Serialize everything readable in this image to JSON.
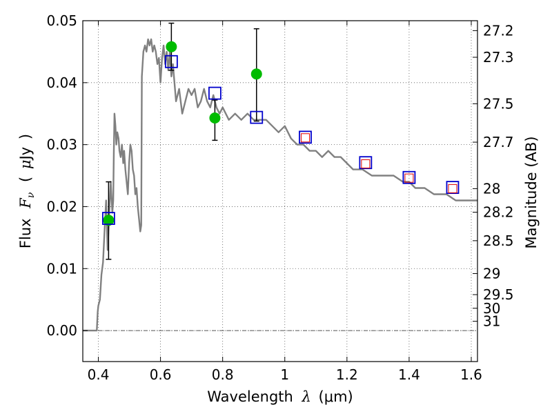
{
  "chart_data": {
    "type": "scatter",
    "xlabel": {
      "pre": "Wavelength",
      "sym": "λ",
      "paren_open": "(",
      "unit": "μm",
      "paren_close": ")"
    },
    "ylabel": {
      "pre": "Flux",
      "sym": "F",
      "sub": "ν",
      "paren_open": "(",
      "unit_sym": "μ",
      "unit_rest": "Jy",
      "paren_close": ")"
    },
    "y2label": "Magnitude (AB)",
    "xlim": [
      0.35,
      1.62
    ],
    "ylim": [
      -0.005,
      0.05
    ],
    "grid": true,
    "x_ticks": [
      {
        "value": 0.4,
        "label": "0.4"
      },
      {
        "value": 0.6,
        "label": "0.6"
      },
      {
        "value": 0.8,
        "label": "0.8"
      },
      {
        "value": 1.0,
        "label": "1"
      },
      {
        "value": 1.2,
        "label": "1.2"
      },
      {
        "value": 1.4,
        "label": "1.4"
      },
      {
        "value": 1.6,
        "label": "1.6"
      }
    ],
    "y_ticks": [
      {
        "value": 0.0,
        "label": "0.00"
      },
      {
        "value": 0.01,
        "label": "0.01"
      },
      {
        "value": 0.02,
        "label": "0.02"
      },
      {
        "value": 0.03,
        "label": "0.03"
      },
      {
        "value": 0.04,
        "label": "0.04"
      },
      {
        "value": 0.05,
        "label": "0.05"
      }
    ],
    "y2_ticks": [
      {
        "flux": 0.0484,
        "label": "27.2"
      },
      {
        "flux": 0.0441,
        "label": "27.3"
      },
      {
        "flux": 0.0366,
        "label": "27.5"
      },
      {
        "flux": 0.0304,
        "label": "27.7"
      },
      {
        "flux": 0.0229,
        "label": "28"
      },
      {
        "flux": 0.0191,
        "label": "28.2"
      },
      {
        "flux": 0.0145,
        "label": "28.5"
      },
      {
        "flux": 0.0092,
        "label": "29"
      },
      {
        "flux": 0.0058,
        "label": "29.5"
      },
      {
        "flux": 0.0036,
        "label": "30"
      },
      {
        "flux": 0.0015,
        "label": "31"
      }
    ],
    "colors": {
      "model_line": "#808080",
      "observed": "#00bb00",
      "model_box": "#0000cc",
      "ir_box": "#dd0000",
      "errorbar": "#000000",
      "zero_line": "#555555",
      "grid": "#555555"
    },
    "model_spectrum": {
      "x": [
        0.35,
        0.395,
        0.398,
        0.4,
        0.405,
        0.41,
        0.415,
        0.42,
        0.425,
        0.43,
        0.435,
        0.44,
        0.442,
        0.445,
        0.448,
        0.45,
        0.452,
        0.455,
        0.458,
        0.461,
        0.465,
        0.468,
        0.472,
        0.476,
        0.48,
        0.483,
        0.487,
        0.491,
        0.495,
        0.499,
        0.503,
        0.507,
        0.511,
        0.515,
        0.519,
        0.523,
        0.527,
        0.531,
        0.535,
        0.538,
        0.54,
        0.545,
        0.55,
        0.555,
        0.56,
        0.565,
        0.57,
        0.575,
        0.58,
        0.585,
        0.59,
        0.595,
        0.6,
        0.605,
        0.61,
        0.615,
        0.62,
        0.625,
        0.63,
        0.635,
        0.64,
        0.65,
        0.66,
        0.67,
        0.68,
        0.69,
        0.7,
        0.71,
        0.72,
        0.73,
        0.74,
        0.75,
        0.76,
        0.77,
        0.78,
        0.79,
        0.8,
        0.82,
        0.84,
        0.86,
        0.88,
        0.9,
        0.92,
        0.94,
        0.96,
        0.98,
        1.0,
        1.02,
        1.04,
        1.06,
        1.08,
        1.1,
        1.12,
        1.14,
        1.16,
        1.18,
        1.2,
        1.22,
        1.25,
        1.28,
        1.3,
        1.32,
        1.35,
        1.38,
        1.4,
        1.42,
        1.45,
        1.48,
        1.5,
        1.52,
        1.55,
        1.58,
        1.62
      ],
      "y": [
        0.0,
        0.0,
        0.003,
        0.004,
        0.005,
        0.009,
        0.011,
        0.016,
        0.021,
        0.013,
        0.019,
        0.024,
        0.022,
        0.019,
        0.021,
        0.029,
        0.035,
        0.033,
        0.03,
        0.032,
        0.031,
        0.029,
        0.028,
        0.03,
        0.027,
        0.029,
        0.026,
        0.024,
        0.022,
        0.027,
        0.03,
        0.029,
        0.026,
        0.025,
        0.022,
        0.023,
        0.02,
        0.018,
        0.016,
        0.017,
        0.041,
        0.045,
        0.046,
        0.045,
        0.047,
        0.046,
        0.047,
        0.045,
        0.046,
        0.045,
        0.043,
        0.044,
        0.04,
        0.044,
        0.046,
        0.043,
        0.045,
        0.042,
        0.045,
        0.041,
        0.043,
        0.037,
        0.039,
        0.035,
        0.037,
        0.039,
        0.038,
        0.039,
        0.036,
        0.037,
        0.039,
        0.037,
        0.036,
        0.038,
        0.036,
        0.035,
        0.036,
        0.034,
        0.035,
        0.034,
        0.035,
        0.034,
        0.034,
        0.034,
        0.033,
        0.032,
        0.033,
        0.031,
        0.03,
        0.03,
        0.029,
        0.029,
        0.028,
        0.029,
        0.028,
        0.028,
        0.027,
        0.026,
        0.026,
        0.025,
        0.025,
        0.025,
        0.025,
        0.024,
        0.024,
        0.023,
        0.023,
        0.022,
        0.022,
        0.022,
        0.021,
        0.021,
        0.021
      ]
    },
    "observed": [
      {
        "x": 0.433,
        "y": 0.0178,
        "err_low": 0.0115,
        "err_high": 0.024
      },
      {
        "x": 0.635,
        "y": 0.0458,
        "err_low": 0.042,
        "err_high": 0.0496
      },
      {
        "x": 0.775,
        "y": 0.0343,
        "err_low": 0.0307,
        "err_high": 0.0372
      },
      {
        "x": 0.909,
        "y": 0.0414,
        "err_low": 0.0338,
        "err_high": 0.0487
      }
    ],
    "model_photometry": [
      {
        "x": 0.433,
        "y": 0.0181
      },
      {
        "x": 0.635,
        "y": 0.0434
      },
      {
        "x": 0.775,
        "y": 0.0383
      },
      {
        "x": 0.909,
        "y": 0.0344
      },
      {
        "x": 1.066,
        "y": 0.0312
      },
      {
        "x": 1.26,
        "y": 0.0271
      },
      {
        "x": 1.4,
        "y": 0.0247
      },
      {
        "x": 1.54,
        "y": 0.0231
      }
    ],
    "ir_photometry": [
      {
        "x": 1.066,
        "y": 0.0311
      },
      {
        "x": 1.26,
        "y": 0.0269
      },
      {
        "x": 1.4,
        "y": 0.0246
      },
      {
        "x": 1.54,
        "y": 0.0229
      }
    ]
  }
}
